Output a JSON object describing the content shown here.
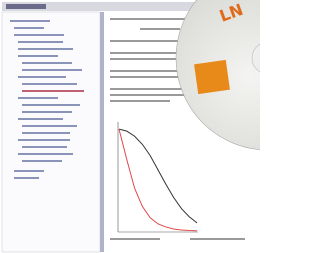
{
  "disc": {
    "logo": "LN"
  },
  "chart": {
    "type": "line",
    "x": [
      0,
      1,
      2,
      3,
      4,
      5,
      6,
      7,
      8,
      9,
      10
    ],
    "xlim": [
      0,
      10
    ],
    "ylim": [
      0,
      1.05
    ],
    "series": [
      {
        "color": "#333333",
        "values": [
          1.0,
          0.98,
          0.93,
          0.85,
          0.74,
          0.6,
          0.46,
          0.33,
          0.22,
          0.14,
          0.08
        ]
      },
      {
        "color": "#e0484a",
        "values": [
          1.0,
          0.7,
          0.42,
          0.24,
          0.13,
          0.07,
          0.04,
          0.02,
          0.01,
          0.005,
          0.003
        ]
      }
    ]
  }
}
